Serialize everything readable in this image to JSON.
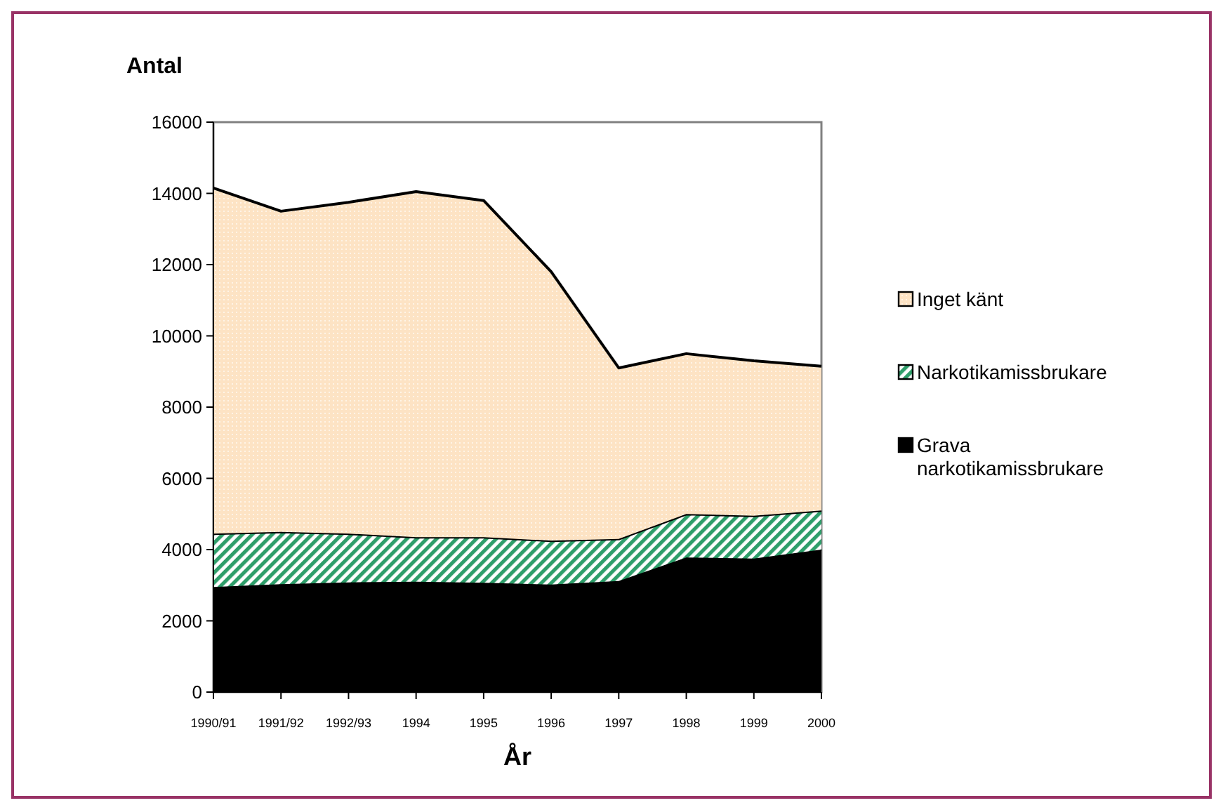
{
  "chart_data": {
    "type": "area",
    "stacked": true,
    "ylabel": "Antal",
    "xlabel": "År",
    "categories": [
      "1990/91",
      "1991/92",
      "1992/93",
      "1994",
      "1995",
      "1996",
      "1997",
      "1998",
      "1999",
      "2000"
    ],
    "series": [
      {
        "name": "Grava narkotikamissbrukare",
        "color": "#000000",
        "values": [
          2950,
          3030,
          3080,
          3100,
          3070,
          3020,
          3120,
          3780,
          3750,
          4000
        ]
      },
      {
        "name": "Narkotikamissbrukare",
        "color": "#2e9e6a",
        "values": [
          1500,
          1470,
          1370,
          1250,
          1280,
          1230,
          1180,
          1220,
          1200,
          1100
        ]
      },
      {
        "name": "Inget känt",
        "color": "#fde3c4",
        "values": [
          9700,
          9000,
          9300,
          9700,
          9450,
          7550,
          4800,
          4500,
          4350,
          4050
        ]
      }
    ],
    "ylim": [
      0,
      16000
    ],
    "yticks": [
      0,
      2000,
      4000,
      6000,
      8000,
      10000,
      12000,
      14000,
      16000
    ],
    "grid": false,
    "legend": "right"
  }
}
